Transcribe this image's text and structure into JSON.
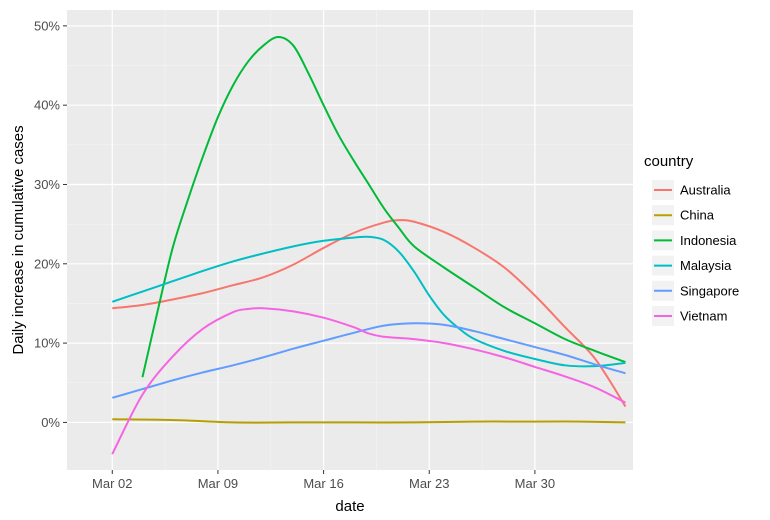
{
  "chart_data": {
    "type": "line",
    "xlabel": "date",
    "ylabel": "Daily increase in cumulative cases",
    "x_ticks": [
      "Mar 02",
      "Mar 09",
      "Mar 16",
      "Mar 23",
      "Mar 30"
    ],
    "y_ticks": [
      "0%",
      "10%",
      "20%",
      "30%",
      "40%",
      "50%"
    ],
    "ylim": [
      -0.06,
      0.52
    ],
    "x_day_range": [
      -3.0,
      34.5
    ],
    "grid": true,
    "legend_title": "country",
    "legend_position": "right",
    "series": [
      {
        "name": "Australia",
        "color": "#F8766D",
        "points": [
          [
            0,
            0.144
          ],
          [
            2,
            0.148
          ],
          [
            4,
            0.155
          ],
          [
            6,
            0.163
          ],
          [
            8,
            0.173
          ],
          [
            10,
            0.183
          ],
          [
            12,
            0.199
          ],
          [
            14,
            0.22
          ],
          [
            16,
            0.239
          ],
          [
            18,
            0.252
          ],
          [
            19,
            0.255
          ],
          [
            20,
            0.253
          ],
          [
            22,
            0.24
          ],
          [
            24,
            0.22
          ],
          [
            26,
            0.195
          ],
          [
            28,
            0.16
          ],
          [
            30,
            0.12
          ],
          [
            32,
            0.08
          ],
          [
            34,
            0.02
          ]
        ]
      },
      {
        "name": "China",
        "color": "#B79F00",
        "points": [
          [
            0,
            0.004
          ],
          [
            4,
            0.003
          ],
          [
            8,
            0.0
          ],
          [
            12,
            0.0
          ],
          [
            16,
            0.0
          ],
          [
            20,
            0.0
          ],
          [
            24,
            0.001
          ],
          [
            28,
            0.001
          ],
          [
            31,
            0.001
          ],
          [
            34,
            0.0
          ]
        ]
      },
      {
        "name": "Indonesia",
        "color": "#00BA38",
        "points": [
          [
            2,
            0.057
          ],
          [
            3,
            0.14
          ],
          [
            4,
            0.22
          ],
          [
            5,
            0.28
          ],
          [
            6,
            0.335
          ],
          [
            7,
            0.385
          ],
          [
            8,
            0.425
          ],
          [
            9,
            0.455
          ],
          [
            10,
            0.475
          ],
          [
            11,
            0.486
          ],
          [
            12,
            0.475
          ],
          [
            13,
            0.44
          ],
          [
            14,
            0.4
          ],
          [
            15,
            0.362
          ],
          [
            16,
            0.33
          ],
          [
            17,
            0.3
          ],
          [
            18,
            0.27
          ],
          [
            19,
            0.245
          ],
          [
            20,
            0.222
          ],
          [
            22,
            0.195
          ],
          [
            24,
            0.17
          ],
          [
            26,
            0.145
          ],
          [
            28,
            0.125
          ],
          [
            30,
            0.105
          ],
          [
            32,
            0.09
          ],
          [
            34,
            0.076
          ]
        ]
      },
      {
        "name": "Malaysia",
        "color": "#00BFC4",
        "points": [
          [
            0,
            0.152
          ],
          [
            2,
            0.165
          ],
          [
            4,
            0.178
          ],
          [
            6,
            0.191
          ],
          [
            8,
            0.203
          ],
          [
            10,
            0.213
          ],
          [
            12,
            0.222
          ],
          [
            14,
            0.229
          ],
          [
            16,
            0.233
          ],
          [
            17,
            0.234
          ],
          [
            18,
            0.23
          ],
          [
            19,
            0.215
          ],
          [
            20,
            0.19
          ],
          [
            21,
            0.16
          ],
          [
            22,
            0.135
          ],
          [
            23,
            0.118
          ],
          [
            24,
            0.105
          ],
          [
            26,
            0.09
          ],
          [
            28,
            0.08
          ],
          [
            30,
            0.072
          ],
          [
            32,
            0.071
          ],
          [
            34,
            0.075
          ]
        ]
      },
      {
        "name": "Singapore",
        "color": "#619CFF",
        "points": [
          [
            0,
            0.031
          ],
          [
            2,
            0.042
          ],
          [
            4,
            0.053
          ],
          [
            6,
            0.063
          ],
          [
            8,
            0.072
          ],
          [
            10,
            0.082
          ],
          [
            12,
            0.093
          ],
          [
            14,
            0.103
          ],
          [
            16,
            0.113
          ],
          [
            18,
            0.122
          ],
          [
            20,
            0.125
          ],
          [
            22,
            0.123
          ],
          [
            24,
            0.115
          ],
          [
            26,
            0.105
          ],
          [
            28,
            0.095
          ],
          [
            30,
            0.085
          ],
          [
            32,
            0.073
          ],
          [
            34,
            0.062
          ]
        ]
      },
      {
        "name": "Vietnam",
        "color": "#F564E3",
        "points": [
          [
            0,
            -0.04
          ],
          [
            2,
            0.035
          ],
          [
            4,
            0.083
          ],
          [
            6,
            0.118
          ],
          [
            8,
            0.139
          ],
          [
            9,
            0.143
          ],
          [
            10,
            0.144
          ],
          [
            12,
            0.14
          ],
          [
            14,
            0.132
          ],
          [
            16,
            0.12
          ],
          [
            17,
            0.112
          ],
          [
            18,
            0.108
          ],
          [
            20,
            0.105
          ],
          [
            22,
            0.1
          ],
          [
            24,
            0.092
          ],
          [
            26,
            0.082
          ],
          [
            28,
            0.07
          ],
          [
            30,
            0.058
          ],
          [
            32,
            0.044
          ],
          [
            34,
            0.025
          ]
        ]
      }
    ]
  }
}
